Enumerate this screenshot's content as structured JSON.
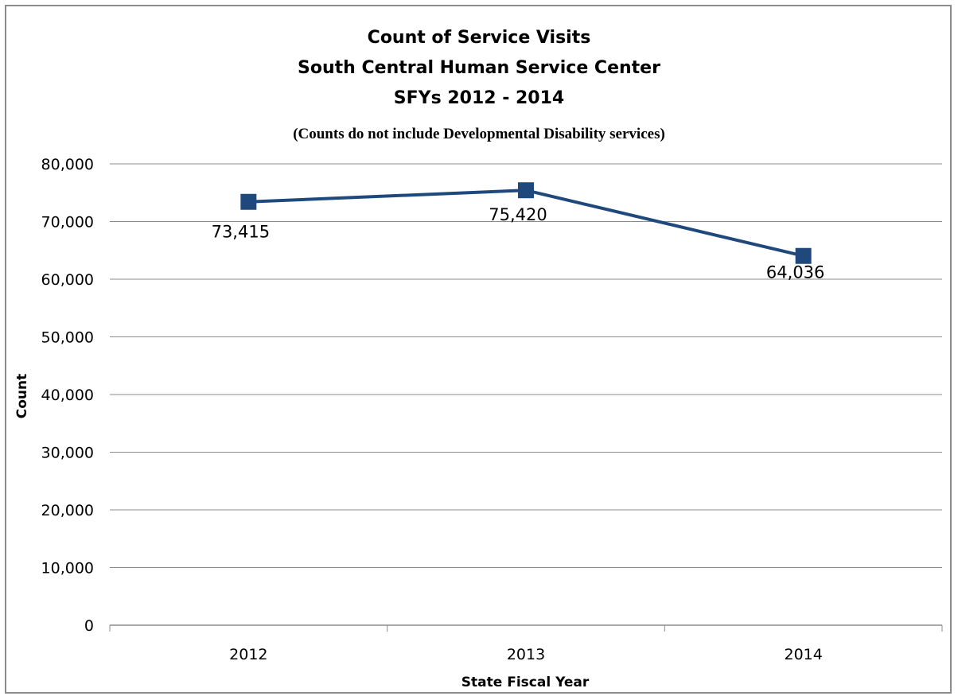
{
  "chart_data": {
    "type": "line",
    "title_lines": [
      "Count of Service Visits",
      "South Central Human Service Center",
      "SFYs 2012 - 2014"
    ],
    "subtitle": "(Counts do not include Developmental Disability services)",
    "xlabel": "State Fiscal Year",
    "ylabel": "Count",
    "categories": [
      "2012",
      "2013",
      "2014"
    ],
    "series": [
      {
        "values": [
          73415,
          75420,
          64036
        ],
        "labels": [
          "73,415",
          "75,420",
          "64,036"
        ],
        "color": "#1f497d"
      }
    ],
    "ylim": [
      0,
      80000
    ],
    "yticks": [
      0,
      10000,
      20000,
      30000,
      40000,
      50000,
      60000,
      70000,
      80000
    ],
    "ytick_labels": [
      "0",
      "10,000",
      "20,000",
      "30,000",
      "40,000",
      "50,000",
      "60,000",
      "70,000",
      "80,000"
    ],
    "grid": true,
    "gridline_color": "#8c8c8c",
    "legend": "none"
  }
}
